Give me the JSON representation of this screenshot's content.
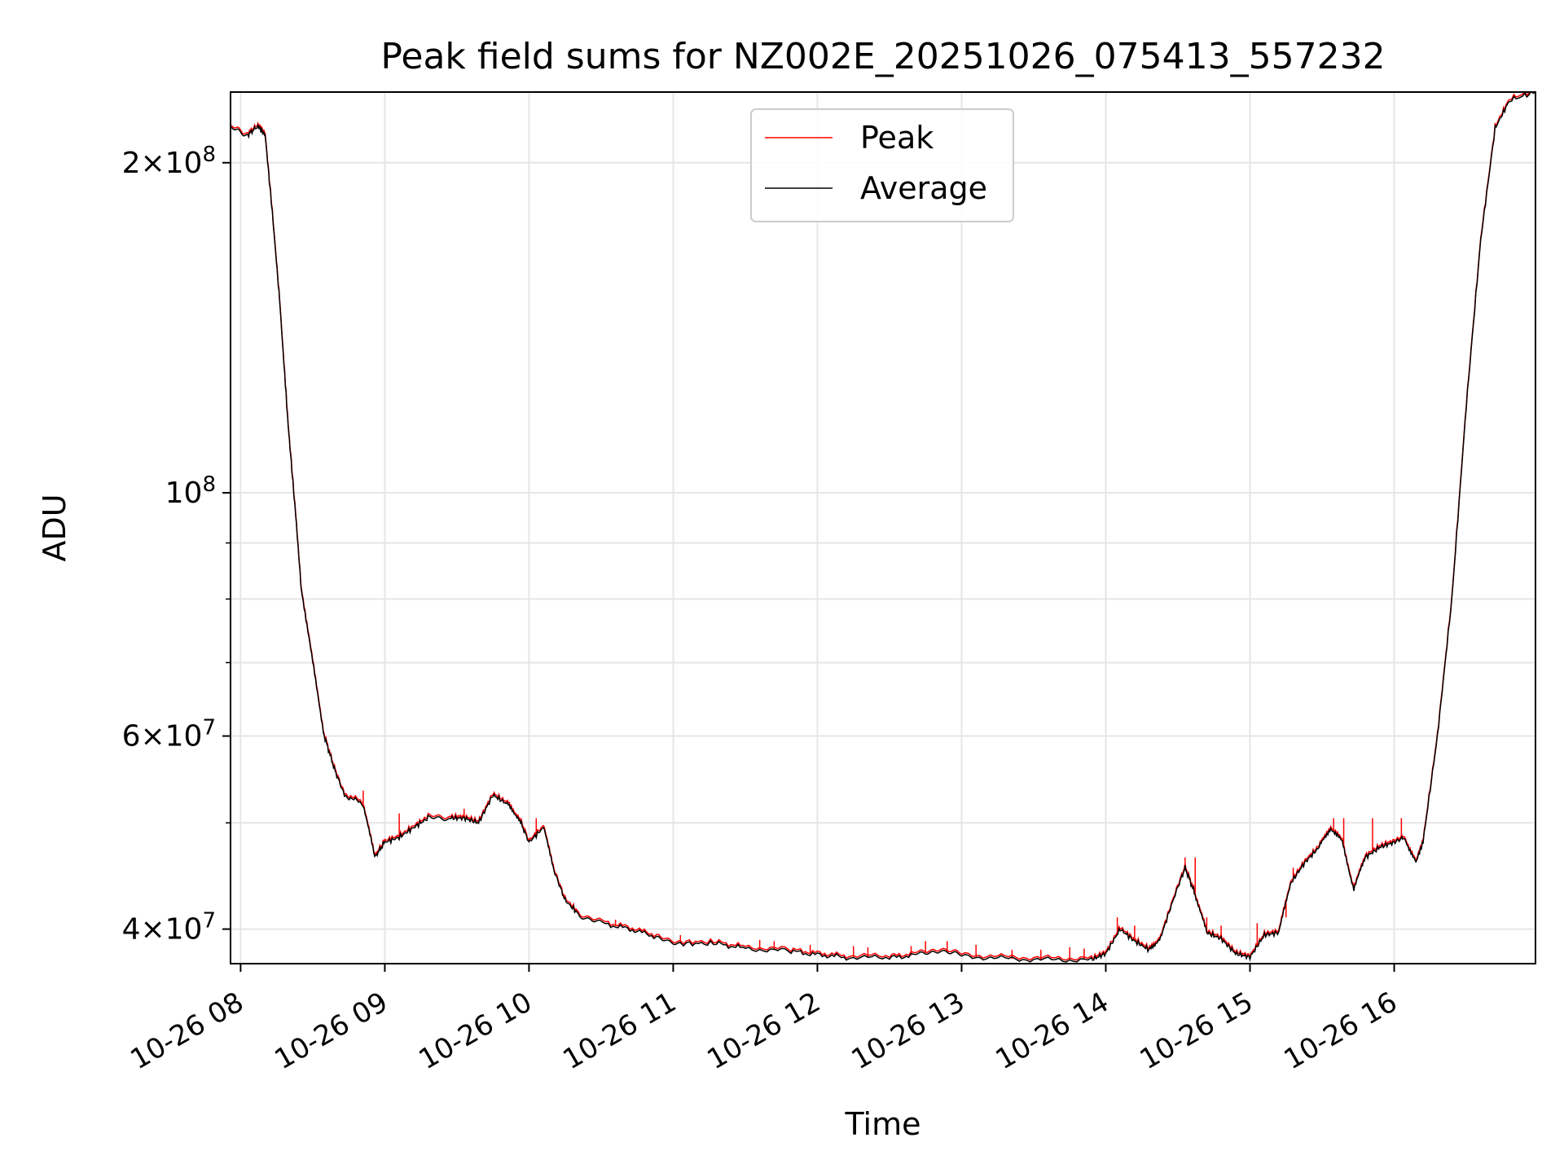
{
  "chart_data": {
    "type": "line",
    "title": "Peak field sums for NZ002E_20251026_075413_557232",
    "xlabel": "Time",
    "ylabel": "ADU",
    "yscale": "log",
    "xlim": [
      7.93,
      16.98
    ],
    "ylim": [
      37200000,
      232000000
    ],
    "grid": true,
    "x_ticks": [
      {
        "value": 8,
        "label": "10-26 08"
      },
      {
        "value": 9,
        "label": "10-26 09"
      },
      {
        "value": 10,
        "label": "10-26 10"
      },
      {
        "value": 11,
        "label": "10-26 11"
      },
      {
        "value": 12,
        "label": "10-26 12"
      },
      {
        "value": 13,
        "label": "10-26 13"
      },
      {
        "value": 14,
        "label": "10-26 14"
      },
      {
        "value": 15,
        "label": "10-26 15"
      },
      {
        "value": 16,
        "label": "10-26 16"
      }
    ],
    "y_major_ticks": [
      {
        "value": 40000000,
        "mant": "4",
        "exp": "7",
        "coef": true
      },
      {
        "value": 60000000,
        "mant": "6",
        "exp": "7",
        "coef": true
      },
      {
        "value": 100000000,
        "mant": "10",
        "exp": "8",
        "coef": false
      },
      {
        "value": 200000000,
        "mant": "2",
        "exp": "8",
        "coef": true
      }
    ],
    "y_minor_ticks": [
      50000000,
      70000000,
      80000000,
      90000000
    ],
    "legend": {
      "position": "top-center",
      "entries": [
        {
          "name": "Peak",
          "color": "#ff0000"
        },
        {
          "name": "Average",
          "color": "#000000"
        }
      ]
    },
    "series": [
      {
        "name": "Average",
        "color": "#000000",
        "points": [
          [
            7.93,
            215000000
          ],
          [
            8.05,
            212000000
          ],
          [
            8.12,
            216000000
          ],
          [
            8.17,
            212000000
          ],
          [
            8.22,
            180000000
          ],
          [
            8.27,
            150000000
          ],
          [
            8.33,
            115000000
          ],
          [
            8.38,
            96000000
          ],
          [
            8.42,
            82000000
          ],
          [
            8.5,
            70000000
          ],
          [
            8.58,
            60000000
          ],
          [
            8.65,
            56000000
          ],
          [
            8.72,
            53000000
          ],
          [
            8.85,
            52000000
          ],
          [
            8.93,
            46500000
          ],
          [
            9.0,
            48000000
          ],
          [
            9.1,
            48500000
          ],
          [
            9.2,
            49500000
          ],
          [
            9.3,
            50500000
          ],
          [
            9.45,
            50500000
          ],
          [
            9.55,
            50500000
          ],
          [
            9.65,
            50000000
          ],
          [
            9.75,
            53000000
          ],
          [
            9.85,
            52000000
          ],
          [
            9.93,
            50500000
          ],
          [
            10.0,
            48000000
          ],
          [
            10.1,
            49500000
          ],
          [
            10.18,
            45000000
          ],
          [
            10.25,
            42500000
          ],
          [
            10.35,
            41200000
          ],
          [
            10.5,
            40500000
          ],
          [
            10.7,
            40000000
          ],
          [
            10.9,
            39300000
          ],
          [
            11.05,
            38800000
          ],
          [
            11.3,
            38800000
          ],
          [
            11.5,
            38400000
          ],
          [
            11.8,
            38200000
          ],
          [
            12.0,
            37900000
          ],
          [
            12.2,
            37700000
          ],
          [
            12.5,
            37650000
          ],
          [
            12.7,
            37900000
          ],
          [
            12.85,
            38300000
          ],
          [
            13.0,
            37800000
          ],
          [
            13.3,
            37600000
          ],
          [
            13.6,
            37500000
          ],
          [
            13.9,
            37500000
          ],
          [
            14.0,
            38000000
          ],
          [
            14.1,
            40000000
          ],
          [
            14.2,
            39000000
          ],
          [
            14.3,
            38300000
          ],
          [
            14.38,
            39300000
          ],
          [
            14.48,
            43000000
          ],
          [
            14.55,
            45500000
          ],
          [
            14.62,
            43000000
          ],
          [
            14.7,
            39700000
          ],
          [
            14.8,
            39200000
          ],
          [
            14.9,
            38000000
          ],
          [
            15.0,
            37700000
          ],
          [
            15.1,
            39500000
          ],
          [
            15.2,
            39700000
          ],
          [
            15.28,
            44000000
          ],
          [
            15.38,
            46000000
          ],
          [
            15.48,
            47500000
          ],
          [
            15.56,
            49500000
          ],
          [
            15.64,
            48000000
          ],
          [
            15.72,
            43500000
          ],
          [
            15.8,
            46500000
          ],
          [
            15.9,
            47500000
          ],
          [
            16.0,
            48000000
          ],
          [
            16.07,
            48500000
          ],
          [
            16.15,
            46000000
          ],
          [
            16.2,
            48000000
          ],
          [
            16.3,
            60000000
          ],
          [
            16.4,
            80000000
          ],
          [
            16.5,
            120000000
          ],
          [
            16.6,
            170000000
          ],
          [
            16.7,
            215000000
          ],
          [
            16.8,
            228000000
          ],
          [
            16.98,
            232000000
          ]
        ]
      },
      {
        "name": "Peak",
        "color": "#ff0000",
        "spikes": [
          [
            8.7,
            54000000
          ],
          [
            8.85,
            53500000
          ],
          [
            9.1,
            51000000
          ],
          [
            9.55,
            51500000
          ],
          [
            10.05,
            50500000
          ],
          [
            10.6,
            40800000
          ],
          [
            11.05,
            39500000
          ],
          [
            11.6,
            39100000
          ],
          [
            11.7,
            39000000
          ],
          [
            11.95,
            38700000
          ],
          [
            12.25,
            38600000
          ],
          [
            12.35,
            38500000
          ],
          [
            12.65,
            38600000
          ],
          [
            12.75,
            39000000
          ],
          [
            12.9,
            39000000
          ],
          [
            13.1,
            38700000
          ],
          [
            13.35,
            38300000
          ],
          [
            13.55,
            38300000
          ],
          [
            13.75,
            38500000
          ],
          [
            13.85,
            38400000
          ],
          [
            14.08,
            41000000
          ],
          [
            14.2,
            40300000
          ],
          [
            14.42,
            40500000
          ],
          [
            14.55,
            46500000
          ],
          [
            14.62,
            46500000
          ],
          [
            14.7,
            41000000
          ],
          [
            14.8,
            40300000
          ],
          [
            15.05,
            40500000
          ],
          [
            15.25,
            41000000
          ],
          [
            15.3,
            45500000
          ],
          [
            15.58,
            50500000
          ],
          [
            15.65,
            50500000
          ],
          [
            15.85,
            50500000
          ],
          [
            16.05,
            50500000
          ]
        ]
      }
    ]
  }
}
